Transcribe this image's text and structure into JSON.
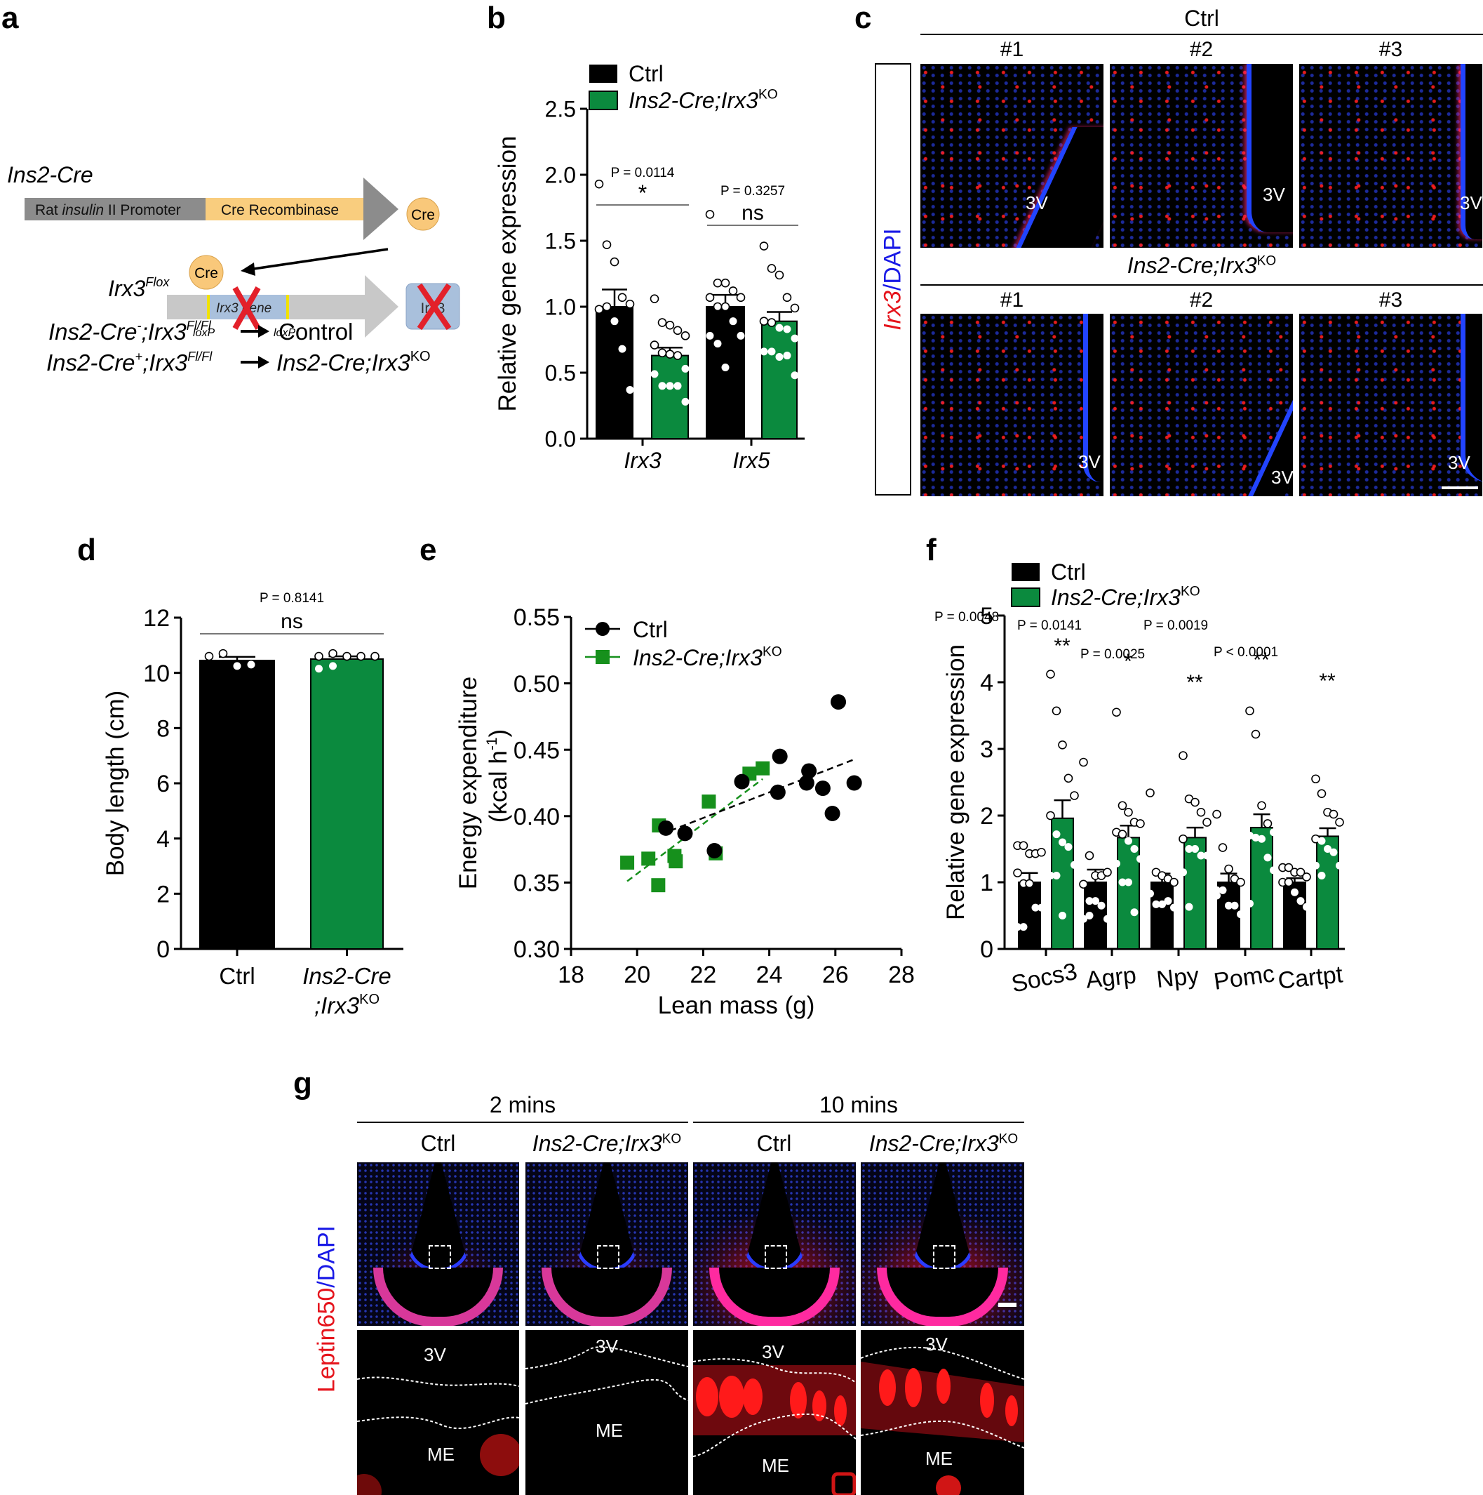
{
  "panel_labels": {
    "a": "a",
    "b": "b",
    "c": "c",
    "d": "d",
    "e": "e",
    "f": "f",
    "g": "g"
  },
  "panel_a": {
    "title": "Ins2-Cre",
    "promoter_label_pre": "Rat ",
    "promoter_label_it": "insulin",
    "promoter_label_post": " II Promoter",
    "recombinase_label": "Cre Recombinase",
    "cre_label": "Cre",
    "flox_label": "Irx3",
    "flox_sup": "Flox",
    "gene_label": "Irx3 gene",
    "loxp_label": "loxP",
    "deleted_box_label": "Irx3",
    "cross_lines": [
      {
        "genotype": "Ins2-Cre",
        "sign": "-",
        "allele": ";Irx3",
        "sup": "Fl/Fl",
        "result": "Control",
        "result_italic": false,
        "result_sup": ""
      },
      {
        "genotype": "Ins2-Cre",
        "sign": "+",
        "allele": ";Irx3",
        "sup": "Fl/Fl",
        "result": "Ins2-Cre;Irx3",
        "result_italic": true,
        "result_sup": "KO"
      }
    ],
    "colors": {
      "promoter": "#8c8c8c",
      "recombinase": "#f9cd7e",
      "cre_circle": "#f9c87a",
      "flox_bar": "#c8c8c8",
      "gene": "#a9c0dc",
      "loxp": "#f2e200",
      "cross": "#e3202a"
    }
  },
  "legend": {
    "ctrl": "Ctrl",
    "ko_main": "Ins2-Cre;Irx3",
    "ko_sup": "KO"
  },
  "colors": {
    "ctrl": "#000000",
    "ko": "#0b8a3e",
    "ko_scatter": "#16901c"
  },
  "chart_data": [
    {
      "panel": "b",
      "type": "bar",
      "ylabel": "Relative gene expression",
      "ylim": [
        0,
        2.5
      ],
      "yticks": [
        "0.0",
        "0.5",
        "1.0",
        "1.5",
        "2.0",
        "2.5"
      ],
      "categories": [
        "Irx3",
        "Irx5"
      ],
      "series": [
        {
          "name": "Ctrl",
          "values": [
            1.0,
            1.0
          ],
          "sem": [
            0.13,
            0.09
          ],
          "points": [
            [
              1.93,
              1.47,
              1.34,
              1.07,
              1.02,
              0.98,
              1.0,
              0.89,
              0.68,
              0.37
            ],
            [
              1.7,
              1.18,
              1.18,
              1.12,
              1.07,
              1.07,
              1.0,
              1.0,
              0.89,
              0.78,
              0.78,
              0.72,
              0.54
            ]
          ]
        },
        {
          "name": "Ins2-Cre;Irx3 KO",
          "values": [
            0.63,
            0.89
          ],
          "sem": [
            0.06,
            0.07
          ],
          "points": [
            [
              1.06,
              0.88,
              0.86,
              0.82,
              0.78,
              0.71,
              0.65,
              0.64,
              0.63,
              0.53,
              0.49,
              0.4,
              0.4,
              0.4,
              0.28
            ],
            [
              1.46,
              1.29,
              1.24,
              1.07,
              0.99,
              0.89,
              0.88,
              0.84,
              0.83,
              0.76,
              0.66,
              0.66,
              0.62,
              0.63,
              0.48
            ]
          ]
        }
      ],
      "annotations": [
        {
          "category": "Irx3",
          "p": "P = 0.0114",
          "sig": "*"
        },
        {
          "category": "Irx5",
          "p": "P = 0.3257",
          "sig": "ns"
        }
      ]
    },
    {
      "panel": "d",
      "type": "bar",
      "ylabel": "Body length (cm)",
      "ylim": [
        0,
        12
      ],
      "yticks": [
        "0",
        "2",
        "4",
        "6",
        "8",
        "10",
        "12"
      ],
      "categories": [
        "Ctrl",
        "Ins2-Cre;Irx3 KO"
      ],
      "category_labels": [
        {
          "line1": "Ctrl",
          "line2": "",
          "italic": false
        },
        {
          "line1": "Ins2-Cre",
          "line2": ";Irx3",
          "sup": "KO",
          "italic": true
        }
      ],
      "values": [
        10.45,
        10.5
      ],
      "sem": [
        0.13,
        0.1
      ],
      "points": [
        [
          10.6,
          10.7,
          10.25,
          10.3
        ],
        [
          10.6,
          10.7,
          10.6,
          10.6,
          10.6,
          10.15,
          10.25
        ]
      ],
      "annotations": [
        {
          "p": "P = 0.8141",
          "sig": "ns"
        }
      ]
    },
    {
      "panel": "e",
      "type": "scatter",
      "xlabel": "Lean mass (g)",
      "ylabel": "Energy expenditure",
      "ylabel2": "(kcal h",
      "ylabel2_sup": "-1",
      "ylabel2_end": ")",
      "xlim": [
        18,
        28
      ],
      "ylim": [
        0.3,
        0.55
      ],
      "xticks": [
        "18",
        "20",
        "22",
        "24",
        "26",
        "28"
      ],
      "yticks": [
        "0.30",
        "0.35",
        "0.40",
        "0.45",
        "0.50",
        "0.55"
      ],
      "legend_position": "top-left",
      "series": [
        {
          "name": "Ctrl",
          "marker": "circle",
          "points": [
            [
              20.87,
              0.391
            ],
            [
              21.45,
              0.387
            ],
            [
              22.34,
              0.374
            ],
            [
              23.17,
              0.426
            ],
            [
              24.32,
              0.445
            ],
            [
              24.26,
              0.418
            ],
            [
              25.2,
              0.434
            ],
            [
              25.13,
              0.425
            ],
            [
              25.62,
              0.421
            ],
            [
              25.91,
              0.402
            ],
            [
              26.09,
              0.486
            ],
            [
              26.57,
              0.425
            ]
          ],
          "trendline": [
            [
              21.0,
              0.389
            ],
            [
              26.6,
              0.443
            ]
          ]
        },
        {
          "name": "Ins2-Cre;Irx3 KO",
          "marker": "square",
          "points": [
            [
              19.7,
              0.365
            ],
            [
              20.34,
              0.368
            ],
            [
              20.66,
              0.393
            ],
            [
              20.64,
              0.348
            ],
            [
              21.13,
              0.37
            ],
            [
              21.17,
              0.366
            ],
            [
              22.17,
              0.411
            ],
            [
              22.38,
              0.372
            ],
            [
              23.4,
              0.432
            ],
            [
              23.8,
              0.436
            ]
          ],
          "trendline": [
            [
              19.7,
              0.351
            ],
            [
              23.8,
              0.428
            ]
          ]
        }
      ]
    },
    {
      "panel": "f",
      "type": "bar",
      "ylabel": "Relative gene expression",
      "ylim": [
        0,
        5
      ],
      "yticks": [
        "0",
        "1",
        "2",
        "3",
        "4",
        "5"
      ],
      "categories": [
        "Socs3",
        "Agrp",
        "Npy",
        "Pomc",
        "Cartpt"
      ],
      "series": [
        {
          "name": "Ctrl",
          "values": [
            1.0,
            1.0,
            1.0,
            1.0,
            1.0
          ],
          "sem": [
            0.14,
            0.19,
            0.13,
            0.13,
            0.06
          ],
          "points": [
            [
              1.55,
              1.55,
              1.43,
              1.43,
              1.45,
              1.14,
              0.98,
              0.98,
              0.62,
              0.62,
              0.33,
              0.33
            ],
            [
              2.8,
              1.4,
              1.1,
              1.1,
              1.15,
              0.97,
              0.72,
              0.72,
              0.65,
              0.45,
              0.45,
              0.5
            ],
            [
              2.34,
              1.15,
              1.1,
              1.05,
              1.0,
              0.83,
              0.67,
              0.67,
              0.72,
              0.62
            ],
            [
              2.02,
              1.52,
              1.2,
              1.05,
              1.0,
              0.88,
              0.88,
              0.65,
              0.65,
              0.52,
              0.8
            ],
            [
              1.22,
              1.22,
              1.15,
              1.15,
              1.08,
              1.0,
              1.0,
              0.85,
              0.72,
              0.63
            ]
          ]
        },
        {
          "name": "Ins2-Cre;Irx3 KO",
          "values": [
            1.96,
            1.67,
            1.67,
            1.82,
            1.69
          ],
          "sem": [
            0.27,
            0.18,
            0.15,
            0.2,
            0.12
          ],
          "points": [
            [
              4.12,
              3.57,
              3.06,
              2.56,
              2.3,
              2.0,
              1.72,
              1.6,
              1.53,
              1.26,
              1.1,
              1.1,
              0.5
            ],
            [
              3.55,
              2.15,
              2.05,
              1.9,
              1.88,
              1.75,
              1.72,
              1.62,
              1.5,
              1.35,
              1.28,
              1.0,
              1.0,
              0.55
            ],
            [
              2.9,
              2.25,
              2.2,
              2.05,
              1.9,
              1.65,
              1.5,
              1.5,
              1.4,
              1.4,
              1.15,
              0.63
            ],
            [
              3.57,
              3.22,
              2.15,
              1.88,
              1.75,
              1.7,
              1.67,
              1.65,
              1.37,
              1.18,
              0.68
            ],
            [
              2.55,
              2.33,
              2.05,
              2.02,
              1.9,
              1.65,
              1.62,
              1.5,
              1.45,
              1.25,
              1.25,
              1.1
            ]
          ]
        }
      ],
      "annotations": [
        {
          "category": "Socs3",
          "p": "P = 0.0048",
          "sig": "**"
        },
        {
          "category": "Agrp",
          "p": "P = 0.0141",
          "sig": "*"
        },
        {
          "category": "Npy",
          "p": "P = 0.0025",
          "sig": "**"
        },
        {
          "category": "Pomc",
          "p": "P = 0.0019",
          "sig": "**"
        },
        {
          "category": "Cartpt",
          "p": "P < 0.0001",
          "sig": "**"
        }
      ]
    }
  ],
  "panel_c": {
    "row_label_red": "Irx3",
    "row_label_blue": "/DAPI",
    "groups": [
      {
        "title": "Ctrl",
        "title_italic": false,
        "title_sup": "",
        "images": [
          {
            "label": "#1",
            "region_label": "3V"
          },
          {
            "label": "#2",
            "region_label": "3V"
          },
          {
            "label": "#3",
            "region_label": "3V"
          }
        ]
      },
      {
        "title": "Ins2-Cre;Irx3",
        "title_italic": true,
        "title_sup": "KO",
        "images": [
          {
            "label": "#1",
            "region_label": "3V"
          },
          {
            "label": "#2",
            "region_label": "3V"
          },
          {
            "label": "#3",
            "region_label": "3V"
          }
        ]
      }
    ]
  },
  "panel_g": {
    "row_label_red": "Leptin650",
    "row_label_blue": "/DAPI",
    "timepoints": [
      {
        "label": "2 mins",
        "columns": [
          {
            "label": "Ctrl",
            "italic": false,
            "sup": ""
          },
          {
            "label": "Ins2-Cre;Irx3",
            "italic": true,
            "sup": "KO"
          }
        ]
      },
      {
        "label": "10 mins",
        "columns": [
          {
            "label": "Ctrl",
            "italic": false,
            "sup": ""
          },
          {
            "label": "Ins2-Cre;Irx3",
            "italic": true,
            "sup": "KO"
          }
        ]
      }
    ],
    "zoom_labels": {
      "top": "3V",
      "bottom": "ME"
    }
  }
}
